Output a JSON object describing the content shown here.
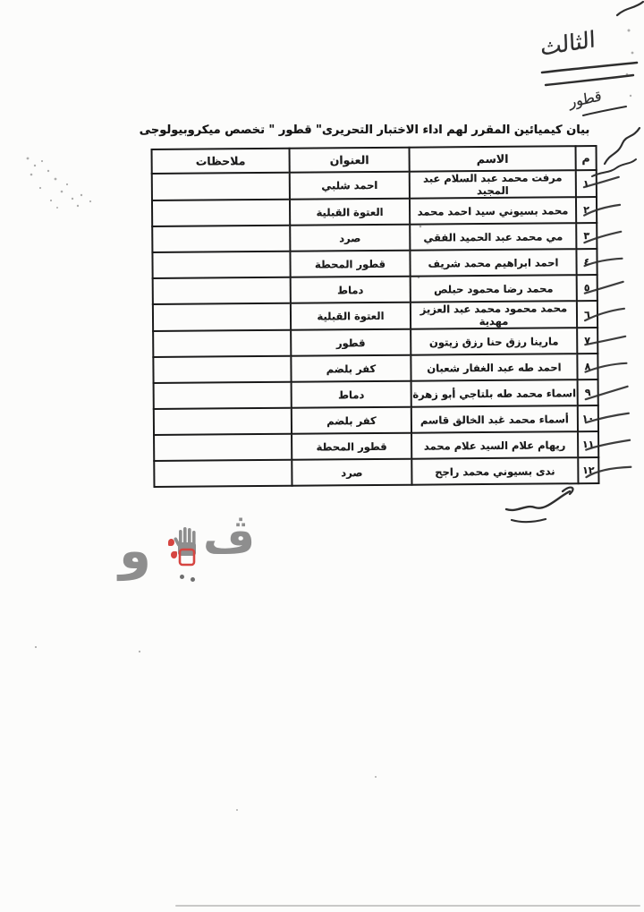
{
  "document": {
    "title": "بيان كيميائين المقرر لهم اداء الاختبار التحريرى\" قطور \" تخصص ميكروبيولوجى"
  },
  "handwriting": {
    "top_note": "الثالث",
    "below_note": "قطور"
  },
  "table": {
    "headers": {
      "num": "م",
      "name": "الاسم",
      "address": "العنوان",
      "notes": "ملاحظات"
    },
    "rows": [
      {
        "num": "١",
        "name": "مرفت محمد عبد السلام عبد المجيد",
        "address": "احمد شلبي",
        "notes": ""
      },
      {
        "num": "٢",
        "name": "محمد بسيوني سيد احمد محمد",
        "address": "العتوة القبلية",
        "notes": ""
      },
      {
        "num": "٣",
        "name": "مي محمد عبد الحميد الفقي",
        "address": "صرد",
        "notes": ""
      },
      {
        "num": "٤",
        "name": "احمد ابراهيم محمد شريف",
        "address": "قطور المحطة",
        "notes": ""
      },
      {
        "num": "٥",
        "name": "محمد رضا محمود حبلص",
        "address": "دماط",
        "notes": ""
      },
      {
        "num": "٦",
        "name": "محمد محمود محمد عبد العزيز مهدية",
        "address": "العتوة القبلية",
        "notes": ""
      },
      {
        "num": "٧",
        "name": "مارينا رزق حنا رزق زيتون",
        "address": "قطور",
        "notes": ""
      },
      {
        "num": "٨",
        "name": "احمد طه عبد الغفار شعبان",
        "address": "كفر بلضم",
        "notes": ""
      },
      {
        "num": "٩",
        "name": "اسماء محمد طه بلتاجي أبو زهرة",
        "address": "دماط",
        "notes": ""
      },
      {
        "num": "١٠",
        "name": "أسماء محمد عبد الخالق قاسم",
        "address": "كفر بلضم",
        "notes": ""
      },
      {
        "num": "١١",
        "name": "ريهام علام السيد علام محمد",
        "address": "قطور المحطة",
        "notes": ""
      },
      {
        "num": "١٢",
        "name": "ندى بسيوني محمد راجح",
        "address": "صرد",
        "notes": ""
      }
    ]
  },
  "watermark": {
    "brand": "فيتو",
    "letter_waw": "و",
    "letter_veh": "ڤ",
    "gray": "#8e8e8e",
    "dark_gray": "#6f6f6f",
    "red": "#d64541"
  },
  "ink_color": "#2e2e2e"
}
